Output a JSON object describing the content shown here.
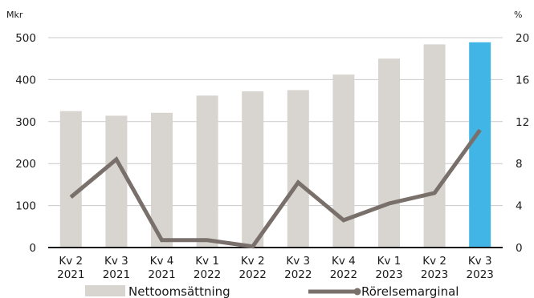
{
  "chart_data": {
    "type": "bar+line",
    "y_left_unit": "Mkr",
    "y_right_unit": "%",
    "ylim_left": [
      0,
      500
    ],
    "ylim_right": [
      0,
      20
    ],
    "y_left_ticks": [
      "0",
      "100",
      "200",
      "300",
      "400",
      "500"
    ],
    "y_right_ticks": [
      "0",
      "4",
      "8",
      "12",
      "16",
      "20"
    ],
    "grid": true,
    "legend_position": "bottom",
    "categories": [
      [
        "Kv 2",
        "2021"
      ],
      [
        "Kv 3",
        "2021"
      ],
      [
        "Kv 4",
        "2021"
      ],
      [
        "Kv 1",
        "2022"
      ],
      [
        "Kv 2",
        "2022"
      ],
      [
        "Kv 3",
        "2022"
      ],
      [
        "Kv 4",
        "2022"
      ],
      [
        "Kv 1",
        "2023"
      ],
      [
        "Kv 2",
        "2023"
      ],
      [
        "Kv 3",
        "2023"
      ]
    ],
    "series": [
      {
        "name": "Nettoomsättning",
        "type": "bar",
        "axis": "left",
        "color": "#d8d4cf",
        "highlight_color": "#41b6e6",
        "highlight_index": 9,
        "values": [
          325,
          314,
          321,
          362,
          372,
          375,
          412,
          450,
          484,
          489
        ]
      },
      {
        "name": "Rörelsemarginal",
        "type": "line",
        "axis": "right",
        "color": "#7a706b",
        "values": [
          4.8,
          8.4,
          0.7,
          0.7,
          0.1,
          6.2,
          2.6,
          4.2,
          5.2,
          11.2
        ]
      }
    ]
  }
}
